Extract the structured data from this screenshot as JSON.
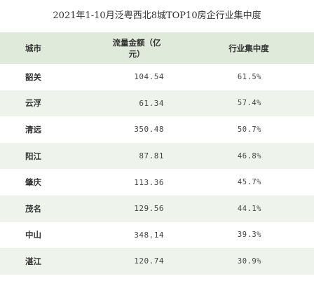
{
  "title": "2021年1-10月泛粤西北8城TOP10房企行业集中度",
  "chart_data": {
    "type": "table",
    "title": "2021年1-10月泛粤西北8城TOP10房企行业集中度",
    "columns": [
      "城市",
      "流量金额（亿元）",
      "行业集中度"
    ],
    "rows": [
      {
        "city": "韶关",
        "volume": "104.54",
        "concentration": "61.5%"
      },
      {
        "city": "云浮",
        "volume": "61.34",
        "concentration": "57.4%"
      },
      {
        "city": "清远",
        "volume": "350.48",
        "concentration": "50.7%"
      },
      {
        "city": "阳江",
        "volume": "87.81",
        "concentration": "46.8%"
      },
      {
        "city": "肇庆",
        "volume": "113.36",
        "concentration": "45.7%"
      },
      {
        "city": "茂名",
        "volume": "129.56",
        "concentration": "44.1%"
      },
      {
        "city": "中山",
        "volume": "348.14",
        "concentration": "39.3%"
      },
      {
        "city": "湛江",
        "volume": "120.74",
        "concentration": "30.9%"
      }
    ]
  },
  "colors": {
    "header_bg": "#dfeadb",
    "stripe_bg": "#eef4ec",
    "text": "#333333"
  }
}
